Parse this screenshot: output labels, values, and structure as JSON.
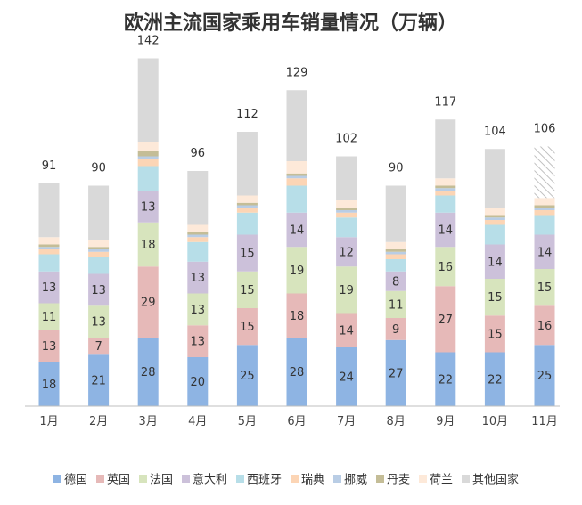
{
  "chart_data": {
    "type": "bar",
    "stacked": true,
    "title": "欧洲主流国家乘用车销量情况（万辆）",
    "categories": [
      "1月",
      "2月",
      "3月",
      "4月",
      "5月",
      "6月",
      "7月",
      "8月",
      "9月",
      "10月",
      "11月"
    ],
    "totals": [
      91,
      90,
      142,
      96,
      112,
      129,
      102,
      90,
      117,
      104,
      106
    ],
    "series": [
      {
        "name": "德国",
        "color": "#8eb4e3",
        "values": [
          18,
          21,
          28,
          20,
          25,
          28,
          24,
          27,
          22,
          22,
          25
        ],
        "labeled": true
      },
      {
        "name": "英国",
        "color": "#e6b9b8",
        "values": [
          13,
          7,
          29,
          13,
          15,
          18,
          14,
          9,
          27,
          15,
          16
        ],
        "labeled": true
      },
      {
        "name": "法国",
        "color": "#d7e4bd",
        "values": [
          11,
          13,
          18,
          13,
          15,
          19,
          19,
          11,
          16,
          15,
          15
        ],
        "labeled": true
      },
      {
        "name": "意大利",
        "color": "#ccc1da",
        "values": [
          13,
          13,
          13,
          13,
          15,
          14,
          12,
          8,
          14,
          14,
          14
        ],
        "labeled": true
      },
      {
        "name": "西班牙",
        "color": "#b7dee8",
        "values": [
          7,
          7,
          10,
          8,
          9,
          11,
          8,
          5,
          7,
          8,
          8
        ],
        "labeled": false
      },
      {
        "name": "瑞典",
        "color": "#fcd5b5",
        "values": [
          2,
          2,
          3,
          2,
          2,
          3,
          2,
          2,
          2,
          2,
          2
        ],
        "labeled": false
      },
      {
        "name": "挪威",
        "color": "#b9cde5",
        "values": [
          1,
          1,
          1,
          1,
          1,
          1,
          1,
          1,
          1,
          1,
          1
        ],
        "labeled": false
      },
      {
        "name": "丹麦",
        "color": "#c4bd97",
        "values": [
          1,
          1,
          2,
          1,
          1,
          1,
          1,
          1,
          1,
          1,
          1
        ],
        "labeled": false
      },
      {
        "name": "荷兰",
        "color": "#fde9d9",
        "values": [
          3,
          3,
          4,
          3,
          3,
          5,
          3,
          3,
          3,
          3,
          3
        ],
        "labeled": false
      },
      {
        "name": "其他国家",
        "color": "#d9d9d9",
        "values": [
          22,
          22,
          34,
          22,
          26,
          29,
          18,
          23,
          24,
          24,
          21
        ],
        "labeled": false
      }
    ],
    "hatched_last_bar_segment": true,
    "legend_position": "bottom",
    "grid": false
  }
}
